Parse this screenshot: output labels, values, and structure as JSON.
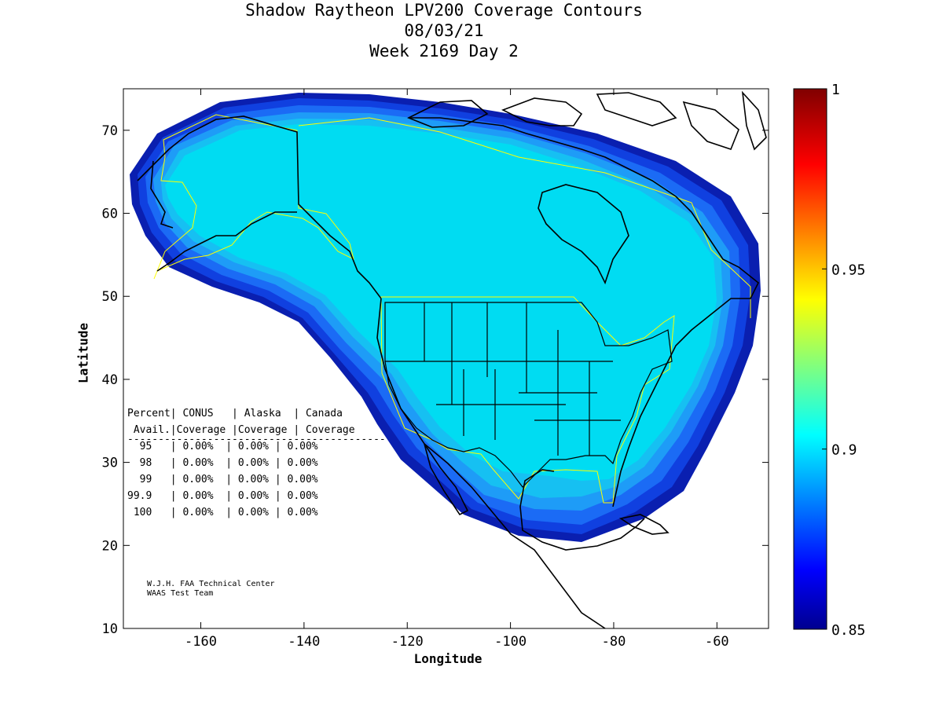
{
  "header": {
    "title_line1": "Shadow Raytheon LPV200 Coverage Contours",
    "title_line2": "08/03/21",
    "title_line3": "Week 2169 Day 2"
  },
  "axes": {
    "xlabel": "Longitude",
    "ylabel": "Latitude",
    "xticks": [
      "-160",
      "-140",
      "-120",
      "-100",
      "-80",
      "-60"
    ],
    "yticks": [
      "10",
      "20",
      "30",
      "40",
      "50",
      "60",
      "70"
    ],
    "xlim": [
      -175,
      -50
    ],
    "ylim": [
      10,
      75
    ]
  },
  "colorbar": {
    "ticks": [
      "1",
      "0.95",
      "0.9",
      "0.85"
    ],
    "range": [
      0.85,
      1.0
    ],
    "colormap": "jet"
  },
  "table": {
    "header1": "Percent| CONUS   | Alaska  | Canada",
    "header2": " Avail.|Coverage |Coverage | Coverage",
    "divider": "------------------------------------------",
    "rows": [
      "  95   | 0.00%  | 0.00% | 0.00%",
      "  98   | 0.00%  | 0.00% | 0.00%",
      "  99   | 0.00%  | 0.00% | 0.00%",
      "99.9   | 0.00%  | 0.00% | 0.00%",
      " 100   | 0.00%  | 0.00% | 0.00%"
    ]
  },
  "credits": {
    "line1": "W.J.H. FAA Technical Center",
    "line2": "WAAS Test Team"
  },
  "colors": {
    "contour_outer": "#0a1fb0",
    "contour_2": "#1040e0",
    "contour_3": "#1b6bf5",
    "contour_4": "#1e9cf7",
    "contour_5": "#16c0f2",
    "contour_inner": "#00dcf2",
    "boundary": "#ffff00"
  }
}
